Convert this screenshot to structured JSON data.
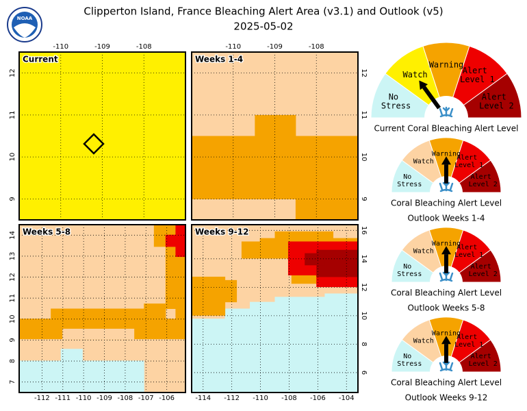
{
  "header": {
    "title": "Clipperton Island, France Bleaching Alert Area (v3.1) and Outlook (v5)",
    "date": "2025-05-02",
    "logo_text": "NOAA"
  },
  "levels": [
    "No Stress",
    "Watch",
    "Warning",
    "Alert Level 1",
    "Alert Level 2"
  ],
  "current_colors": [
    "#ccf5f5",
    "#fff000",
    "#f5a300",
    "#ee0000",
    "#a50000"
  ],
  "outlook_colors": [
    "#ccf5f5",
    "#fdd3a3",
    "#f5a300",
    "#ee0000",
    "#a50000"
  ],
  "panels": [
    {
      "label": "Current",
      "xlim": [
        -111,
        -107
      ],
      "ylim": [
        8.5,
        12.5
      ],
      "xticks": [
        -110,
        -109,
        -108
      ],
      "yticks": [
        12,
        11,
        10,
        9
      ],
      "xaxis": "top",
      "yaxis": "left"
    },
    {
      "label": "Weeks 1-4",
      "xlim": [
        -111,
        -107
      ],
      "ylim": [
        8.5,
        12.5
      ],
      "xticks": [
        -110,
        -109,
        -108
      ],
      "yticks": [
        12,
        11,
        10,
        9
      ],
      "xaxis": "top",
      "yaxis": "right"
    },
    {
      "label": "Weeks 5-8",
      "xlim": [
        -113.1,
        -105.1
      ],
      "ylim": [
        6.5,
        14.5
      ],
      "xticks": [
        -112,
        -111,
        -110,
        -109,
        -108,
        -107,
        -106
      ],
      "yticks": [
        14,
        13,
        12,
        11,
        10,
        9,
        8,
        7
      ],
      "xaxis": "bottom",
      "yaxis": "left"
    },
    {
      "label": "Weeks 9-12",
      "xlim": [
        -114.8,
        -103.2
      ],
      "ylim": [
        4.6,
        16.4
      ],
      "xticks": [
        -114,
        -112,
        -110,
        -108,
        -106,
        -104
      ],
      "yticks": [
        16,
        14,
        12,
        10,
        8,
        6
      ],
      "xaxis": "bottom",
      "yaxis": "right"
    }
  ],
  "gauges": [
    {
      "caption": [
        "Current Coral Bleaching Alert Level"
      ],
      "level": 1
    },
    {
      "caption": [
        "Coral Bleaching Alert Level",
        "Outlook Weeks 1-4"
      ],
      "level": 2
    },
    {
      "caption": [
        "Coral Bleaching Alert Level",
        "Outlook Weeks 5-8"
      ],
      "level": 2
    },
    {
      "caption": [
        "Coral Bleaching Alert Level",
        "Outlook Weeks 9-12"
      ],
      "level": 2
    }
  ]
}
